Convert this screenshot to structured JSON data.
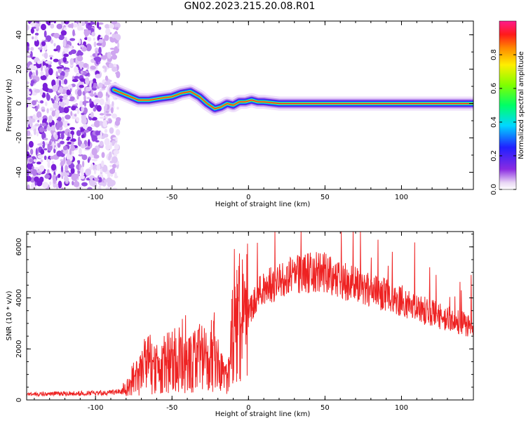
{
  "title": "GN02.2023.215.20.08.R01",
  "colors": {
    "snr_line": "#ee2222",
    "spectrogram_palette": "rainbow (purple-blue-cyan-green-yellow-orange-red-magenta)"
  },
  "chart_data": [
    {
      "type": "heatmap",
      "xlabel": "Height of straight line (km)",
      "ylabel": "Frequency (Hz)",
      "xlim": [
        -145,
        147
      ],
      "ylim": [
        -50,
        48
      ],
      "xticks": [
        -100,
        -50,
        0,
        50,
        100
      ],
      "xtick_labels": [
        "-100",
        "-50",
        "0",
        "50",
        "100"
      ],
      "yticks": [
        40,
        20,
        0,
        -20,
        -40
      ],
      "ytick_labels": [
        "40",
        "20",
        "0",
        "-20",
        "-40"
      ],
      "grid": false,
      "colorbar": {
        "label": "Normalized spectral amplitude",
        "range": [
          0,
          1
        ],
        "ticks": [
          0,
          0.2,
          0.4,
          0.6,
          0.8
        ],
        "tick_labels": [
          "0.0",
          "0.2",
          "0.4",
          "0.6",
          "0.8"
        ]
      },
      "ridge": {
        "description_free": true,
        "x": [
          -88,
          -80,
          -72,
          -65,
          -58,
          -50,
          -44,
          -38,
          -32,
          -27,
          -22,
          -18,
          -14,
          -10,
          -6,
          -2,
          2,
          6,
          10,
          20,
          50,
          100,
          147
        ],
        "y": [
          8,
          5,
          2,
          2,
          3,
          4,
          6,
          7,
          4,
          0,
          -3,
          -2,
          0,
          -1,
          1,
          1,
          2,
          1,
          1,
          0,
          0,
          0,
          0
        ]
      },
      "noise_region_x": [
        -145,
        -85
      ]
    },
    {
      "type": "line",
      "xlabel": "Height of straight line (km)",
      "ylabel": "SNR (10 * v/v)",
      "xlim": [
        -145,
        147
      ],
      "ylim": [
        0,
        6600
      ],
      "xticks": [
        -100,
        -50,
        0,
        50,
        100
      ],
      "xtick_labels": [
        "-100",
        "-50",
        "0",
        "50",
        "100"
      ],
      "yticks": [
        0,
        2000,
        4000,
        6000
      ],
      "ytick_labels": [
        "0",
        "2000",
        "4000",
        "6000"
      ],
      "grid": false,
      "series": [
        {
          "x": [
            -145,
            -130,
            -110,
            -90,
            -82,
            -78,
            -74,
            -70,
            -66,
            -62,
            -58,
            -54,
            -50,
            -46,
            -42,
            -38,
            -34,
            -30,
            -26,
            -22,
            -18,
            -14,
            -12,
            -10,
            -8,
            -6,
            -4,
            -2,
            0,
            2,
            4,
            6,
            8,
            10,
            15,
            20,
            25,
            30,
            35,
            40,
            45,
            50,
            55,
            60,
            65,
            70,
            75,
            80,
            85,
            90,
            95,
            100,
            105,
            110,
            115,
            120,
            125,
            130,
            135,
            140,
            147
          ],
          "values": [
            200,
            250,
            260,
            280,
            350,
            600,
            900,
            1200,
            1500,
            1300,
            1100,
            1500,
            1700,
            1400,
            1300,
            1500,
            1800,
            1700,
            1600,
            1900,
            1200,
            900,
            2000,
            2500,
            3200,
            3200,
            3000,
            3400,
            3500,
            3600,
            3800,
            4000,
            4300,
            4400,
            4500,
            4600,
            4800,
            4900,
            4900,
            5000,
            5000,
            5000,
            4800,
            4700,
            4600,
            4500,
            4300,
            4300,
            4200,
            4100,
            4000,
            3900,
            3700,
            3600,
            3500,
            3400,
            3300,
            3200,
            3100,
            3000,
            2800
          ]
        }
      ]
    }
  ]
}
